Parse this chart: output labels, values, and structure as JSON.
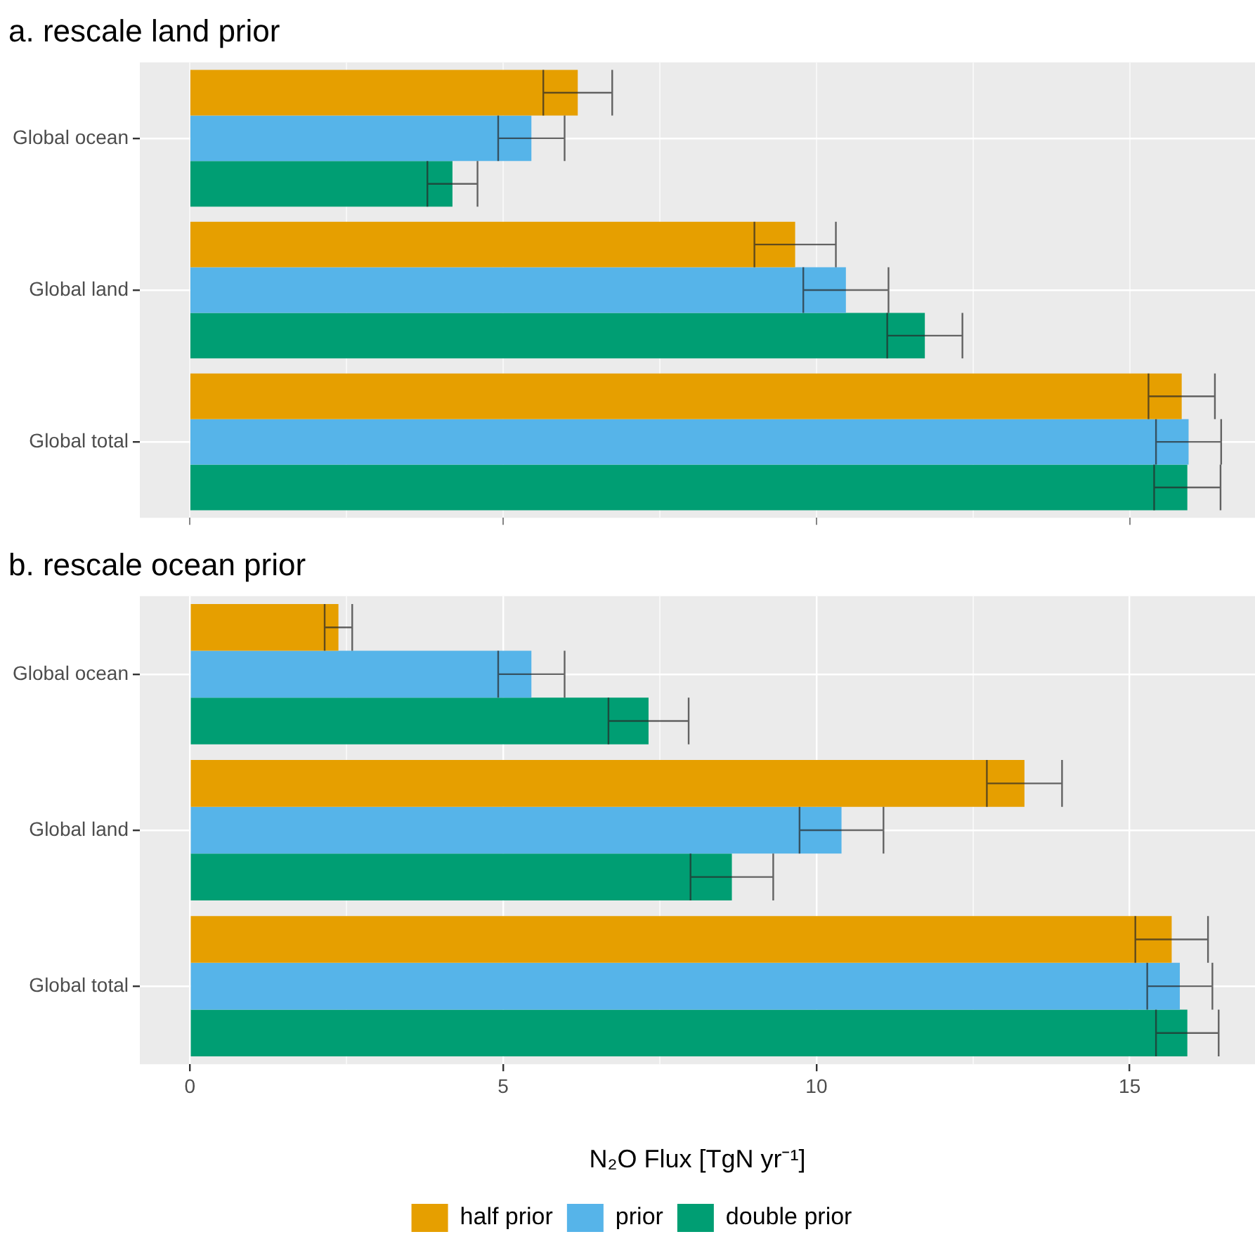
{
  "chart_data": [
    {
      "type": "bar",
      "title": "a. rescale land prior",
      "orientation": "horizontal",
      "categories": [
        "Global ocean",
        "Global land",
        "Global total"
      ],
      "series": [
        {
          "color": "#e69f00",
          "values": [
            6.19,
            9.66,
            15.83
          ],
          "errors": [
            0.55,
            0.65,
            0.53
          ]
        },
        {
          "color": "#56b4e9",
          "values": [
            5.45,
            10.47,
            15.94
          ],
          "errors": [
            0.53,
            0.68,
            0.52
          ]
        },
        {
          "color": "#009e73",
          "values": [
            4.19,
            11.73,
            15.92
          ],
          "errors": [
            0.4,
            0.6,
            0.53
          ]
        }
      ],
      "xlim": [
        -0.8,
        17
      ],
      "xticks": [
        {
          "value": 0,
          "label": null
        },
        {
          "value": 2.5,
          "label": null
        },
        {
          "value": 5,
          "label": null
        },
        {
          "value": 7.5,
          "label": null
        },
        {
          "value": 10,
          "label": null
        },
        {
          "value": 12.5,
          "label": null
        },
        {
          "value": 15,
          "label": null
        }
      ],
      "tick_labels": "y",
      "grid": true,
      "legend": false
    },
    {
      "type": "bar",
      "title": "b. rescale ocean prior",
      "orientation": "horizontal",
      "xlabel": "N₂O Flux [TgN yr⁻¹]",
      "categories": [
        "Global ocean",
        "Global land",
        "Global total"
      ],
      "series": [
        {
          "name": "half prior",
          "color": "#e69f00",
          "values": [
            2.37,
            13.32,
            15.67
          ],
          "errors": [
            0.22,
            0.6,
            0.58
          ]
        },
        {
          "name": "prior",
          "color": "#56b4e9",
          "values": [
            5.45,
            10.4,
            15.8
          ],
          "errors": [
            0.53,
            0.67,
            0.52
          ]
        },
        {
          "name": "double prior",
          "color": "#009e73",
          "values": [
            7.32,
            8.65,
            15.92
          ],
          "errors": [
            0.64,
            0.66,
            0.5
          ]
        }
      ],
      "xlim": [
        -0.8,
        17
      ],
      "xticks": [
        0,
        {
          "value": 2.5,
          "label": null
        },
        5,
        {
          "value": 7.5,
          "label": null
        },
        10,
        {
          "value": 12.5,
          "label": null
        },
        15
      ],
      "grid": true,
      "legend": "bottom"
    }
  ]
}
